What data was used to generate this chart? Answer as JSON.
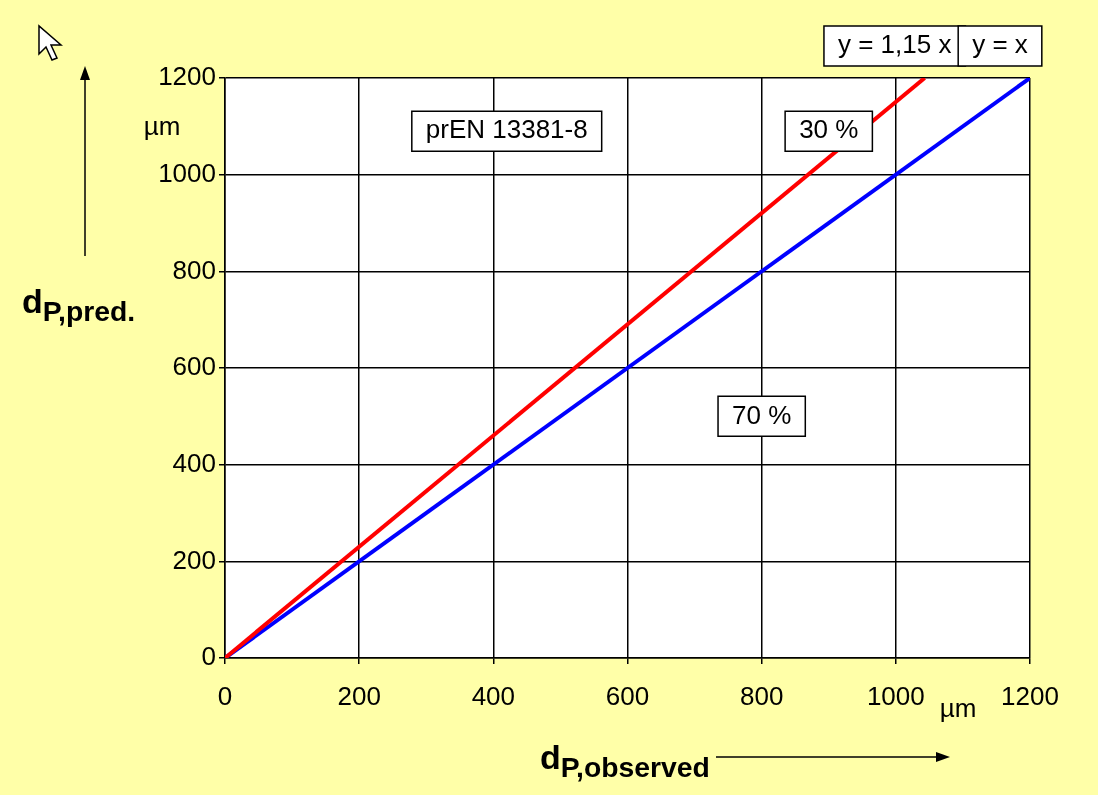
{
  "chart_data": {
    "type": "line",
    "xlabel": "d$_{P,observed}$",
    "ylabel": "d$_{P,pred.}$",
    "xlim": [
      0,
      1200
    ],
    "ylim": [
      0,
      1200
    ],
    "xticks": [
      0,
      200,
      400,
      600,
      800,
      1000,
      1200
    ],
    "yticks": [
      0,
      200,
      400,
      600,
      800,
      1000,
      1200
    ],
    "grid": true,
    "legend": false,
    "series": [
      {
        "name": "y = 1,15 x",
        "color": "#ff0000",
        "x": [
          0,
          1043
        ],
        "values": [
          0,
          1200
        ]
      },
      {
        "name": "y = x",
        "color": "#0000ff",
        "x": [
          0,
          1200
        ],
        "values": [
          0,
          1200
        ]
      }
    ],
    "annotations": [
      "prEN 13381-8",
      "30 %",
      "70 %",
      "µm",
      "µm"
    ]
  }
}
